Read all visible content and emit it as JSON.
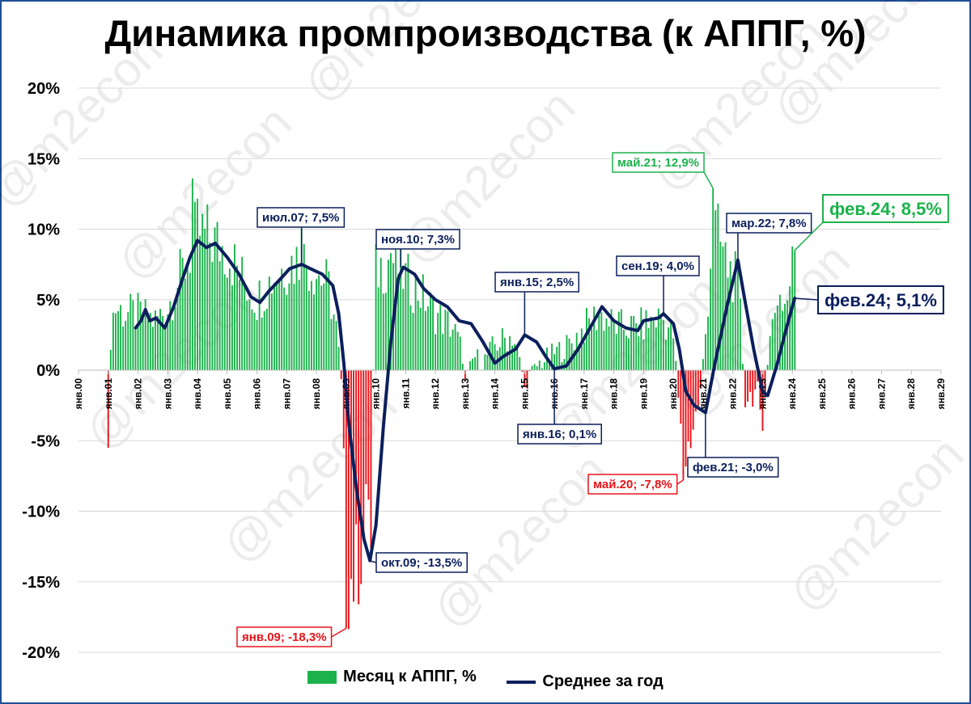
{
  "chart_data": {
    "type": "bar+line",
    "title": "Динамика промпроизводства (к АППГ, %)",
    "ylim": [
      -20,
      20
    ],
    "yticks": [
      20,
      15,
      10,
      5,
      0,
      -5,
      -10,
      -15,
      -20
    ],
    "ytick_labels": [
      "20%",
      "15%",
      "10%",
      "5%",
      "0%",
      "-5%",
      "-10%",
      "-15%",
      "-20%"
    ],
    "x_range": [
      "янв.00",
      "янв.29"
    ],
    "xtick_labels": [
      "янв.00",
      "янв.01",
      "янв.02",
      "янв.03",
      "янв.04",
      "янв.05",
      "янв.06",
      "янв.07",
      "янв.08",
      "янв.09",
      "янв.10",
      "янв.11",
      "янв.12",
      "янв.13",
      "янв.14",
      "янв.15",
      "янв.16",
      "янв.17",
      "янв.18",
      "янв.19",
      "янв.20",
      "янв.21",
      "янв.22",
      "янв.23",
      "янв.24",
      "янв.25",
      "янв.26",
      "янв.27",
      "янв.28",
      "янв.29"
    ],
    "grid": true,
    "legend_position": "bottom",
    "colors": {
      "positive_bar": "#1bb24b",
      "negative_bar": "#e8141a",
      "line": "#0b1f5c",
      "frame": "#1f4e96"
    },
    "series": [
      {
        "name": "Месяц к АППГ, %",
        "kind": "bar",
        "start": "янв.01",
        "frequency": "monthly",
        "note_points": [
          {
            "x": 2001.0,
            "y": -5.5
          },
          {
            "x": 2003.83,
            "y": 13.6
          },
          {
            "x": 2007.5,
            "y": 10.0
          },
          {
            "x": 2009.0,
            "y": -18.3
          },
          {
            "x": 2009.8,
            "y": -13.5
          },
          {
            "x": 2010.5,
            "y": 8.3
          },
          {
            "x": 2015.0,
            "y": -1.2
          },
          {
            "x": 2020.33,
            "y": -7.8
          },
          {
            "x": 2021.33,
            "y": 12.9
          },
          {
            "x": 2022.9,
            "y": -2.8
          },
          {
            "x": 2023.0,
            "y": -4.3
          },
          {
            "x": 2024.08,
            "y": 8.5
          }
        ]
      },
      {
        "name": "Среднее за год",
        "kind": "line",
        "points": [
          {
            "x": 2001.92,
            "y": 3.0
          },
          {
            "x": 2002.1,
            "y": 3.5
          },
          {
            "x": 2002.25,
            "y": 4.3
          },
          {
            "x": 2002.4,
            "y": 3.5
          },
          {
            "x": 2002.6,
            "y": 3.7
          },
          {
            "x": 2002.9,
            "y": 3.0
          },
          {
            "x": 2003.2,
            "y": 4.5
          },
          {
            "x": 2003.5,
            "y": 6.5
          },
          {
            "x": 2003.75,
            "y": 8.0
          },
          {
            "x": 2004.0,
            "y": 9.2
          },
          {
            "x": 2004.3,
            "y": 8.7
          },
          {
            "x": 2004.6,
            "y": 9.0
          },
          {
            "x": 2005.0,
            "y": 8.0
          },
          {
            "x": 2005.4,
            "y": 6.8
          },
          {
            "x": 2005.8,
            "y": 5.2
          },
          {
            "x": 2006.1,
            "y": 4.8
          },
          {
            "x": 2006.4,
            "y": 5.6
          },
          {
            "x": 2006.8,
            "y": 6.5
          },
          {
            "x": 2007.1,
            "y": 7.2
          },
          {
            "x": 2007.5,
            "y": 7.5
          },
          {
            "x": 2007.8,
            "y": 7.2
          },
          {
            "x": 2008.2,
            "y": 6.8
          },
          {
            "x": 2008.55,
            "y": 6.0
          },
          {
            "x": 2008.75,
            "y": 4.0
          },
          {
            "x": 2008.92,
            "y": 0.5
          },
          {
            "x": 2009.1,
            "y": -4.0
          },
          {
            "x": 2009.35,
            "y": -8.5
          },
          {
            "x": 2009.6,
            "y": -12.0
          },
          {
            "x": 2009.8,
            "y": -13.5
          },
          {
            "x": 2010.0,
            "y": -11.0
          },
          {
            "x": 2010.25,
            "y": -4.0
          },
          {
            "x": 2010.5,
            "y": 2.0
          },
          {
            "x": 2010.75,
            "y": 6.5
          },
          {
            "x": 2010.92,
            "y": 7.3
          },
          {
            "x": 2011.3,
            "y": 6.8
          },
          {
            "x": 2011.6,
            "y": 5.8
          },
          {
            "x": 2012.0,
            "y": 5.0
          },
          {
            "x": 2012.4,
            "y": 4.5
          },
          {
            "x": 2012.8,
            "y": 3.5
          },
          {
            "x": 2013.2,
            "y": 3.3
          },
          {
            "x": 2013.6,
            "y": 2.0
          },
          {
            "x": 2014.0,
            "y": 0.5
          },
          {
            "x": 2014.3,
            "y": 1.0
          },
          {
            "x": 2014.7,
            "y": 1.5
          },
          {
            "x": 2015.0,
            "y": 2.5
          },
          {
            "x": 2015.4,
            "y": 2.0
          },
          {
            "x": 2015.7,
            "y": 1.0
          },
          {
            "x": 2016.0,
            "y": 0.1
          },
          {
            "x": 2016.4,
            "y": 0.3
          },
          {
            "x": 2016.8,
            "y": 1.5
          },
          {
            "x": 2017.2,
            "y": 3.0
          },
          {
            "x": 2017.6,
            "y": 4.5
          },
          {
            "x": 2018.0,
            "y": 3.5
          },
          {
            "x": 2018.4,
            "y": 3.0
          },
          {
            "x": 2018.8,
            "y": 2.8
          },
          {
            "x": 2019.0,
            "y": 3.5
          },
          {
            "x": 2019.5,
            "y": 3.7
          },
          {
            "x": 2019.67,
            "y": 4.0
          },
          {
            "x": 2020.0,
            "y": 3.3
          },
          {
            "x": 2020.2,
            "y": 1.5
          },
          {
            "x": 2020.42,
            "y": -1.5
          },
          {
            "x": 2020.7,
            "y": -2.5
          },
          {
            "x": 2021.08,
            "y": -3.0
          },
          {
            "x": 2021.4,
            "y": 0.5
          },
          {
            "x": 2021.8,
            "y": 4.5
          },
          {
            "x": 2022.17,
            "y": 7.8
          },
          {
            "x": 2022.4,
            "y": 5.0
          },
          {
            "x": 2022.7,
            "y": 1.5
          },
          {
            "x": 2023.0,
            "y": -1.5
          },
          {
            "x": 2023.17,
            "y": -1.8
          },
          {
            "x": 2023.5,
            "y": 0.5
          },
          {
            "x": 2023.8,
            "y": 3.0
          },
          {
            "x": 2024.08,
            "y": 5.1
          }
        ]
      }
    ],
    "annotations": [
      {
        "text": "июл.07; 7,5%",
        "x": 2007.5,
        "y": 7.5,
        "color": "#0b1f5c",
        "size": "normal"
      },
      {
        "text": "ноя.10; 7,3%",
        "x": 2010.83,
        "y": 7.3,
        "color": "#0b1f5c",
        "size": "normal"
      },
      {
        "text": "янв.15; 2,5%",
        "x": 2015.0,
        "y": 2.5,
        "color": "#0b1f5c",
        "size": "normal"
      },
      {
        "text": "янв.16; 0,1%",
        "x": 2016.0,
        "y": 0.1,
        "color": "#0b1f5c",
        "size": "normal"
      },
      {
        "text": "сен.19; 4,0%",
        "x": 2019.67,
        "y": 4.0,
        "color": "#0b1f5c",
        "size": "normal"
      },
      {
        "text": "мар.22; 7,8%",
        "x": 2022.17,
        "y": 7.8,
        "color": "#0b1f5c",
        "size": "normal"
      },
      {
        "text": "фев.21; -3,0%",
        "x": 2021.08,
        "y": -3.0,
        "color": "#0b1f5c",
        "size": "normal"
      },
      {
        "text": "окт.09; -13,5%",
        "x": 2009.75,
        "y": -13.5,
        "color": "#0b1f5c",
        "size": "normal"
      },
      {
        "text": "янв.09; -18,3%",
        "x": 2009.0,
        "y": -18.3,
        "color": "#e8141a",
        "size": "normal"
      },
      {
        "text": "май.20; -7,8%",
        "x": 2020.33,
        "y": -7.8,
        "color": "#e8141a",
        "size": "normal"
      },
      {
        "text": "май.21; 12,9%",
        "x": 2021.33,
        "y": 12.9,
        "color": "#1bb24b",
        "size": "normal"
      },
      {
        "text": "фев.24; 8,5%",
        "x": 2024.08,
        "y": 8.5,
        "color": "#1bb24b",
        "size": "big"
      },
      {
        "text": "фев.24; 5,1%",
        "x": 2024.08,
        "y": 5.1,
        "color": "#0b1f5c",
        "size": "big"
      }
    ],
    "watermark": "@m2econ"
  }
}
